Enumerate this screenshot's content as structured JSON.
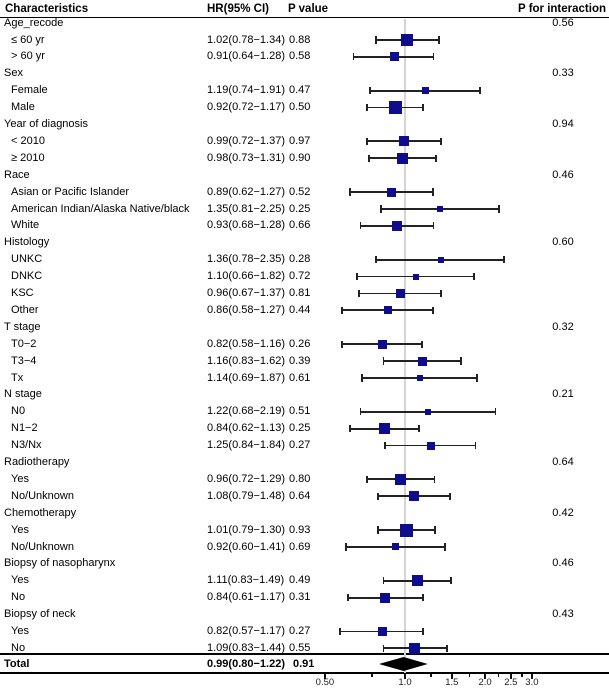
{
  "colors": {
    "marker": "#0d0d8d",
    "whisker": "#222222",
    "reference_line": "#d4d4d4",
    "diamond": "#000000",
    "rule": "#000000"
  },
  "chart_data": {
    "type": "forest",
    "columns": {
      "characteristics": "Characteristics",
      "hr_ci": "HR(95% CI)",
      "p_value": "P value",
      "p_interaction": "P for interaction"
    },
    "x_axis": {
      "scale": "log",
      "reference_value": 1.0,
      "tick_labels": [
        "0.50",
        "1.0",
        "1.5",
        "2.0",
        "2.5",
        "3.0"
      ],
      "tick_values": [
        0.5,
        1.0,
        1.5,
        2.0,
        2.5,
        3.0
      ],
      "minor_tick_values": [
        0.75,
        1.25,
        1.75,
        2.25,
        2.75
      ]
    },
    "rows": [
      {
        "kind": "group",
        "label": "Age_recode",
        "p_interaction": "0.56"
      },
      {
        "kind": "item",
        "label": "≤ 60 yr",
        "hr_ci": "1.02(0.78−1.34)",
        "p_value": "0.88",
        "est": 1.02,
        "lo": 0.78,
        "hi": 1.34,
        "marker_size": 12
      },
      {
        "kind": "item",
        "label": "> 60 yr",
        "hr_ci": "0.91(0.64−1.28)",
        "p_value": "0.58",
        "est": 0.91,
        "lo": 0.64,
        "hi": 1.28,
        "marker_size": 9
      },
      {
        "kind": "group",
        "label": "Sex",
        "p_interaction": "0.33"
      },
      {
        "kind": "item",
        "label": "Female",
        "hr_ci": "1.19(0.74−1.91)",
        "p_value": "0.47",
        "est": 1.19,
        "lo": 0.74,
        "hi": 1.91,
        "marker_size": 7
      },
      {
        "kind": "item",
        "label": "Male",
        "hr_ci": "0.92(0.72−1.17)",
        "p_value": "0.50",
        "est": 0.92,
        "lo": 0.72,
        "hi": 1.17,
        "marker_size": 13
      },
      {
        "kind": "group",
        "label": "Year of diagnosis",
        "p_interaction": "0.94"
      },
      {
        "kind": "item",
        "label": "< 2010",
        "hr_ci": "0.99(0.72−1.37)",
        "p_value": "0.97",
        "est": 0.99,
        "lo": 0.72,
        "hi": 1.37,
        "marker_size": 10
      },
      {
        "kind": "item",
        "label": "≥ 2010",
        "hr_ci": "0.98(0.73−1.31)",
        "p_value": "0.90",
        "est": 0.98,
        "lo": 0.73,
        "hi": 1.31,
        "marker_size": 11
      },
      {
        "kind": "group",
        "label": "Race",
        "p_interaction": "0.46"
      },
      {
        "kind": "item",
        "label": "Asian or Pacific Islander",
        "hr_ci": "0.89(0.62−1.27)",
        "p_value": "0.52",
        "est": 0.89,
        "lo": 0.62,
        "hi": 1.27,
        "marker_size": 9
      },
      {
        "kind": "item",
        "label": "American Indian/Alaska Native/black",
        "hr_ci": "1.35(0.81−2.25)",
        "p_value": "0.25",
        "est": 1.35,
        "lo": 0.81,
        "hi": 2.25,
        "marker_size": 6
      },
      {
        "kind": "item",
        "label": "White",
        "hr_ci": "0.93(0.68−1.28)",
        "p_value": "0.66",
        "est": 0.93,
        "lo": 0.68,
        "hi": 1.28,
        "marker_size": 10
      },
      {
        "kind": "group",
        "label": "Histology",
        "p_interaction": "0.60"
      },
      {
        "kind": "item",
        "label": "UNKC",
        "hr_ci": "1.36(0.78−2.35)",
        "p_value": "0.28",
        "est": 1.36,
        "lo": 0.78,
        "hi": 2.35,
        "marker_size": 6
      },
      {
        "kind": "item",
        "label": "DNKC",
        "hr_ci": "1.10(0.66−1.82)",
        "p_value": "0.72",
        "est": 1.1,
        "lo": 0.66,
        "hi": 1.82,
        "marker_size": 6
      },
      {
        "kind": "item",
        "label": "KSC",
        "hr_ci": "0.96(0.67−1.37)",
        "p_value": "0.81",
        "est": 0.96,
        "lo": 0.67,
        "hi": 1.37,
        "marker_size": 9
      },
      {
        "kind": "item",
        "label": "Other",
        "hr_ci": "0.86(0.58−1.27)",
        "p_value": "0.44",
        "est": 0.86,
        "lo": 0.58,
        "hi": 1.27,
        "marker_size": 8
      },
      {
        "kind": "group",
        "label": "T stage",
        "p_interaction": "0.32"
      },
      {
        "kind": "item",
        "label": "T0−2",
        "hr_ci": "0.82(0.58−1.16)",
        "p_value": "0.26",
        "est": 0.82,
        "lo": 0.58,
        "hi": 1.16,
        "marker_size": 9
      },
      {
        "kind": "item",
        "label": "T3−4",
        "hr_ci": "1.16(0.83−1.62)",
        "p_value": "0.39",
        "est": 1.16,
        "lo": 0.83,
        "hi": 1.62,
        "marker_size": 9
      },
      {
        "kind": "item",
        "label": "Tx",
        "hr_ci": "1.14(0.69−1.87)",
        "p_value": "0.61",
        "est": 1.14,
        "lo": 0.69,
        "hi": 1.87,
        "marker_size": 6
      },
      {
        "kind": "group",
        "label": "N stage",
        "p_interaction": "0.21"
      },
      {
        "kind": "item",
        "label": "N0",
        "hr_ci": "1.22(0.68−2.19)",
        "p_value": "0.51",
        "est": 1.22,
        "lo": 0.68,
        "hi": 2.19,
        "marker_size": 6
      },
      {
        "kind": "item",
        "label": "N1−2",
        "hr_ci": "0.84(0.62−1.13)",
        "p_value": "0.25",
        "est": 0.84,
        "lo": 0.62,
        "hi": 1.13,
        "marker_size": 11
      },
      {
        "kind": "item",
        "label": "N3/Nx",
        "hr_ci": "1.25(0.84−1.84)",
        "p_value": "0.27",
        "est": 1.25,
        "lo": 0.84,
        "hi": 1.84,
        "marker_size": 8
      },
      {
        "kind": "group",
        "label": "Radiotherapy",
        "p_interaction": "0.64"
      },
      {
        "kind": "item",
        "label": "Yes",
        "hr_ci": "0.96(0.72−1.29)",
        "p_value": "0.80",
        "est": 0.96,
        "lo": 0.72,
        "hi": 1.29,
        "marker_size": 11
      },
      {
        "kind": "item",
        "label": "No/Unknown",
        "hr_ci": "1.08(0.79−1.48)",
        "p_value": "0.64",
        "est": 1.08,
        "lo": 0.79,
        "hi": 1.48,
        "marker_size": 10
      },
      {
        "kind": "group",
        "label": "Chemotherapy",
        "p_interaction": "0.42"
      },
      {
        "kind": "item",
        "label": "Yes",
        "hr_ci": "1.01(0.79−1.30)",
        "p_value": "0.93",
        "est": 1.01,
        "lo": 0.79,
        "hi": 1.3,
        "marker_size": 13
      },
      {
        "kind": "item",
        "label": "No/Unknown",
        "hr_ci": "0.92(0.60−1.41)",
        "p_value": "0.69",
        "est": 0.92,
        "lo": 0.6,
        "hi": 1.41,
        "marker_size": 7
      },
      {
        "kind": "group",
        "label": "Biopsy of nasopharynx",
        "p_interaction": "0.46"
      },
      {
        "kind": "item",
        "label": "Yes",
        "hr_ci": "1.11(0.83−1.49)",
        "p_value": "0.49",
        "est": 1.11,
        "lo": 0.83,
        "hi": 1.49,
        "marker_size": 11
      },
      {
        "kind": "item",
        "label": "No",
        "hr_ci": "0.84(0.61−1.17)",
        "p_value": "0.31",
        "est": 0.84,
        "lo": 0.61,
        "hi": 1.17,
        "marker_size": 10
      },
      {
        "kind": "group",
        "label": "Biopsy of neck",
        "p_interaction": "0.43"
      },
      {
        "kind": "item",
        "label": "Yes",
        "hr_ci": "0.82(0.57−1.17)",
        "p_value": "0.27",
        "est": 0.82,
        "lo": 0.57,
        "hi": 1.17,
        "marker_size": 9
      },
      {
        "kind": "item",
        "label": "No",
        "hr_ci": "1.09(0.83−1.44)",
        "p_value": "0.55",
        "est": 1.09,
        "lo": 0.83,
        "hi": 1.44,
        "marker_size": 11
      }
    ],
    "total": {
      "label": "Total",
      "hr_ci": "0.99(0.80−1.22)",
      "p_value": "0.91",
      "est": 0.99,
      "lo": 0.8,
      "hi": 1.22
    }
  }
}
